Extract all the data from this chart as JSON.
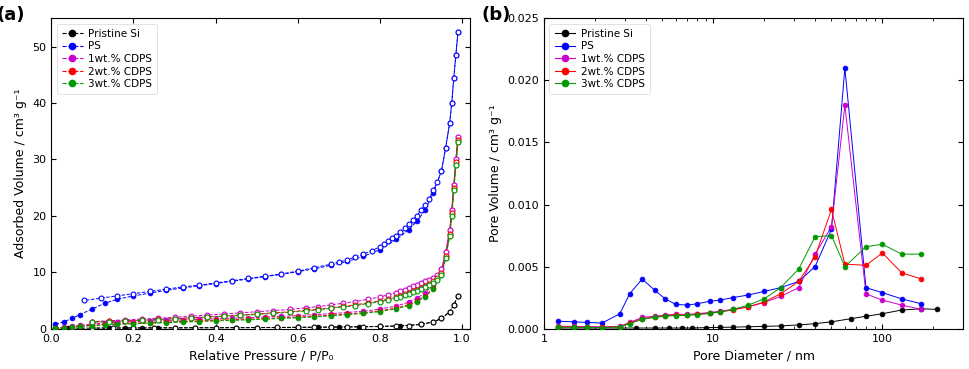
{
  "panel_a": {
    "xlabel": "Relative Pressure / P/P₀",
    "ylabel": "Adsorbed Volume / cm³ g⁻¹",
    "ylim": [
      0,
      55
    ],
    "yticks": [
      0,
      10,
      20,
      30,
      40,
      50
    ],
    "xlim": [
      0.0,
      1.02
    ],
    "xticks": [
      0.0,
      0.2,
      0.4,
      0.6,
      0.8,
      1.0
    ],
    "series": {
      "Pristine Si": {
        "color": "#000000",
        "adsorption_x": [
          0.01,
          0.04,
          0.07,
          0.1,
          0.14,
          0.18,
          0.22,
          0.26,
          0.3,
          0.35,
          0.4,
          0.45,
          0.5,
          0.55,
          0.6,
          0.65,
          0.7,
          0.75,
          0.8,
          0.85,
          0.9,
          0.93,
          0.95,
          0.97,
          0.98,
          0.99
        ],
        "adsorption_y": [
          0.05,
          0.07,
          0.08,
          0.09,
          0.1,
          0.11,
          0.12,
          0.13,
          0.14,
          0.15,
          0.16,
          0.17,
          0.18,
          0.2,
          0.22,
          0.24,
          0.27,
          0.31,
          0.38,
          0.52,
          0.75,
          1.2,
          1.8,
          3.0,
          4.2,
          5.8
        ],
        "desorption_x": [
          0.99,
          0.98,
          0.97,
          0.95,
          0.93,
          0.9,
          0.87,
          0.84,
          0.8,
          0.76,
          0.72,
          0.68,
          0.64,
          0.6,
          0.55,
          0.5,
          0.45,
          0.4,
          0.35,
          0.3,
          0.25,
          0.2,
          0.15,
          0.1
        ],
        "desorption_y": [
          5.8,
          4.2,
          3.0,
          1.8,
          1.2,
          0.75,
          0.55,
          0.45,
          0.4,
          0.35,
          0.32,
          0.29,
          0.26,
          0.24,
          0.22,
          0.2,
          0.18,
          0.17,
          0.16,
          0.15,
          0.14,
          0.13,
          0.12,
          0.1
        ]
      },
      "PS": {
        "color": "#0000FF",
        "adsorption_x": [
          0.01,
          0.03,
          0.05,
          0.07,
          0.1,
          0.13,
          0.16,
          0.2,
          0.24,
          0.28,
          0.32,
          0.36,
          0.4,
          0.44,
          0.48,
          0.52,
          0.56,
          0.6,
          0.64,
          0.68,
          0.72,
          0.76,
          0.8,
          0.84,
          0.87,
          0.89,
          0.91,
          0.93,
          0.95,
          0.96,
          0.97,
          0.975,
          0.98,
          0.985,
          0.99
        ],
        "adsorption_y": [
          0.8,
          1.2,
          1.8,
          2.5,
          3.5,
          4.5,
          5.2,
          5.8,
          6.3,
          6.8,
          7.2,
          7.6,
          8.0,
          8.4,
          8.8,
          9.2,
          9.6,
          10.1,
          10.6,
          11.2,
          11.9,
          12.8,
          14.0,
          15.8,
          17.5,
          19.0,
          21.0,
          24.0,
          28.0,
          32.0,
          36.5,
          40.0,
          44.5,
          48.5,
          52.5
        ],
        "desorption_x": [
          0.99,
          0.985,
          0.98,
          0.975,
          0.97,
          0.96,
          0.95,
          0.94,
          0.93,
          0.92,
          0.91,
          0.9,
          0.89,
          0.88,
          0.87,
          0.86,
          0.85,
          0.84,
          0.83,
          0.82,
          0.81,
          0.8,
          0.78,
          0.76,
          0.74,
          0.72,
          0.7,
          0.68,
          0.64,
          0.6,
          0.56,
          0.52,
          0.48,
          0.44,
          0.4,
          0.36,
          0.32,
          0.28,
          0.24,
          0.2,
          0.16,
          0.12,
          0.08
        ],
        "desorption_y": [
          52.5,
          48.5,
          44.5,
          40.0,
          36.5,
          32.0,
          28.0,
          26.0,
          24.5,
          23.0,
          22.0,
          21.0,
          20.0,
          19.2,
          18.5,
          17.8,
          17.2,
          16.5,
          16.0,
          15.5,
          15.0,
          14.5,
          13.8,
          13.2,
          12.7,
          12.2,
          11.8,
          11.4,
          10.8,
          10.2,
          9.7,
          9.3,
          8.9,
          8.5,
          8.1,
          7.7,
          7.4,
          7.0,
          6.6,
          6.2,
          5.8,
          5.4,
          5.0
        ]
      },
      "1wt.% CDPS": {
        "color": "#CC00CC",
        "adsorption_x": [
          0.01,
          0.03,
          0.05,
          0.07,
          0.1,
          0.13,
          0.16,
          0.2,
          0.24,
          0.28,
          0.32,
          0.36,
          0.4,
          0.44,
          0.48,
          0.52,
          0.56,
          0.6,
          0.64,
          0.68,
          0.72,
          0.76,
          0.8,
          0.84,
          0.87,
          0.89,
          0.91,
          0.93,
          0.95,
          0.96,
          0.97,
          0.975,
          0.98,
          0.985,
          0.99
        ],
        "adsorption_y": [
          0.15,
          0.25,
          0.4,
          0.6,
          0.8,
          1.0,
          1.15,
          1.25,
          1.35,
          1.45,
          1.55,
          1.65,
          1.75,
          1.85,
          1.95,
          2.05,
          2.18,
          2.32,
          2.48,
          2.65,
          2.85,
          3.1,
          3.45,
          4.0,
          4.7,
          5.4,
          6.3,
          7.8,
          10.5,
          13.5,
          17.5,
          21.0,
          25.5,
          30.0,
          34.0
        ],
        "desorption_x": [
          0.99,
          0.985,
          0.98,
          0.975,
          0.97,
          0.96,
          0.95,
          0.94,
          0.93,
          0.92,
          0.91,
          0.9,
          0.89,
          0.88,
          0.87,
          0.86,
          0.85,
          0.84,
          0.82,
          0.8,
          0.77,
          0.74,
          0.71,
          0.68,
          0.65,
          0.62,
          0.58,
          0.54,
          0.5,
          0.46,
          0.42,
          0.38,
          0.34,
          0.3,
          0.26,
          0.22,
          0.18,
          0.14,
          0.1
        ],
        "desorption_y": [
          34.0,
          30.0,
          25.5,
          21.0,
          17.5,
          13.5,
          10.5,
          9.5,
          9.0,
          8.7,
          8.4,
          8.1,
          7.8,
          7.5,
          7.2,
          6.9,
          6.6,
          6.4,
          6.0,
          5.6,
          5.2,
          4.8,
          4.5,
          4.2,
          3.9,
          3.7,
          3.4,
          3.2,
          3.0,
          2.8,
          2.6,
          2.4,
          2.2,
          2.0,
          1.85,
          1.7,
          1.55,
          1.4,
          1.25
        ]
      },
      "2wt.% CDPS": {
        "color": "#FF0000",
        "adsorption_x": [
          0.01,
          0.03,
          0.05,
          0.07,
          0.1,
          0.13,
          0.16,
          0.2,
          0.24,
          0.28,
          0.32,
          0.36,
          0.4,
          0.44,
          0.48,
          0.52,
          0.56,
          0.6,
          0.64,
          0.68,
          0.72,
          0.76,
          0.8,
          0.84,
          0.87,
          0.89,
          0.91,
          0.93,
          0.95,
          0.96,
          0.97,
          0.975,
          0.98,
          0.985,
          0.99
        ],
        "adsorption_y": [
          0.1,
          0.18,
          0.3,
          0.45,
          0.6,
          0.75,
          0.88,
          0.98,
          1.08,
          1.18,
          1.28,
          1.38,
          1.48,
          1.58,
          1.68,
          1.8,
          1.92,
          2.05,
          2.2,
          2.38,
          2.58,
          2.82,
          3.15,
          3.65,
          4.25,
          4.9,
          5.8,
          7.2,
          9.8,
          12.8,
          16.8,
          20.5,
          25.0,
          29.5,
          33.5
        ],
        "desorption_x": [
          0.99,
          0.985,
          0.98,
          0.975,
          0.97,
          0.96,
          0.95,
          0.94,
          0.93,
          0.92,
          0.91,
          0.9,
          0.89,
          0.88,
          0.87,
          0.86,
          0.85,
          0.84,
          0.82,
          0.8,
          0.77,
          0.74,
          0.71,
          0.68,
          0.65,
          0.62,
          0.58,
          0.54,
          0.5,
          0.46,
          0.42,
          0.38,
          0.34,
          0.3,
          0.26,
          0.22,
          0.18,
          0.14,
          0.1
        ],
        "desorption_y": [
          33.5,
          29.5,
          25.0,
          20.5,
          16.8,
          12.8,
          9.8,
          8.9,
          8.4,
          7.95,
          7.55,
          7.2,
          6.9,
          6.6,
          6.35,
          6.1,
          5.85,
          5.62,
          5.25,
          4.9,
          4.55,
          4.22,
          3.95,
          3.7,
          3.45,
          3.25,
          3.0,
          2.8,
          2.6,
          2.42,
          2.25,
          2.08,
          1.92,
          1.78,
          1.65,
          1.52,
          1.4,
          1.28,
          1.18
        ]
      },
      "3wt.% CDPS": {
        "color": "#009900",
        "adsorption_x": [
          0.01,
          0.03,
          0.05,
          0.07,
          0.1,
          0.13,
          0.16,
          0.2,
          0.24,
          0.28,
          0.32,
          0.36,
          0.4,
          0.44,
          0.48,
          0.52,
          0.56,
          0.6,
          0.64,
          0.68,
          0.72,
          0.76,
          0.8,
          0.84,
          0.87,
          0.89,
          0.91,
          0.93,
          0.95,
          0.96,
          0.97,
          0.975,
          0.98,
          0.985,
          0.99
        ],
        "adsorption_y": [
          0.08,
          0.15,
          0.25,
          0.38,
          0.52,
          0.65,
          0.76,
          0.86,
          0.96,
          1.06,
          1.16,
          1.26,
          1.36,
          1.46,
          1.56,
          1.68,
          1.8,
          1.93,
          2.08,
          2.26,
          2.46,
          2.7,
          3.02,
          3.52,
          4.1,
          4.75,
          5.65,
          7.0,
          9.5,
          12.5,
          16.5,
          20.0,
          24.5,
          29.0,
          33.0
        ],
        "desorption_x": [
          0.99,
          0.985,
          0.98,
          0.975,
          0.97,
          0.96,
          0.95,
          0.94,
          0.93,
          0.92,
          0.91,
          0.9,
          0.89,
          0.88,
          0.87,
          0.86,
          0.85,
          0.84,
          0.82,
          0.8,
          0.77,
          0.74,
          0.71,
          0.68,
          0.65,
          0.62,
          0.58,
          0.54,
          0.5,
          0.46,
          0.42,
          0.38,
          0.34,
          0.3,
          0.26,
          0.22,
          0.18,
          0.14,
          0.1
        ],
        "desorption_y": [
          33.0,
          29.0,
          24.5,
          20.0,
          16.5,
          12.5,
          9.5,
          8.6,
          8.1,
          7.7,
          7.35,
          7.0,
          6.7,
          6.42,
          6.17,
          5.92,
          5.68,
          5.46,
          5.1,
          4.76,
          4.42,
          4.1,
          3.82,
          3.58,
          3.35,
          3.14,
          2.9,
          2.7,
          2.52,
          2.34,
          2.18,
          2.02,
          1.87,
          1.73,
          1.6,
          1.48,
          1.36,
          1.25,
          1.15
        ]
      }
    }
  },
  "panel_b": {
    "xlabel": "Pore Diameter / nm",
    "ylabel": "Pore Volume / cm³ g⁻¹",
    "ylim": [
      0.0,
      0.025
    ],
    "yticks": [
      0.0,
      0.005,
      0.01,
      0.015,
      0.02,
      0.025
    ],
    "xlim": [
      1,
      300
    ],
    "series": {
      "Pristine Si": {
        "color": "#000000",
        "x": [
          1.2,
          1.5,
          1.8,
          2.2,
          2.8,
          3.5,
          4.5,
          5.5,
          6.5,
          7.5,
          9.0,
          11.0,
          13.0,
          16.0,
          20.0,
          25.0,
          32.0,
          40.0,
          50.0,
          65.0,
          80.0,
          100.0,
          130.0,
          170.0,
          210.0
        ],
        "y": [
          5e-05,
          5e-05,
          5e-05,
          5e-05,
          5e-05,
          5e-05,
          5e-05,
          5e-05,
          5e-05,
          5e-05,
          8e-05,
          0.0001,
          0.00012,
          0.00015,
          0.00018,
          0.00022,
          0.0003,
          0.0004,
          0.00055,
          0.0008,
          0.001,
          0.0012,
          0.0015,
          0.0016,
          0.00155
        ]
      },
      "PS": {
        "color": "#0000FF",
        "x": [
          1.2,
          1.5,
          1.8,
          2.2,
          2.8,
          3.2,
          3.8,
          4.5,
          5.2,
          6.0,
          7.0,
          8.0,
          9.5,
          11.0,
          13.0,
          16.0,
          20.0,
          25.0,
          32.0,
          40.0,
          50.0,
          60.0,
          80.0,
          100.0,
          130.0,
          170.0
        ],
        "y": [
          0.0006,
          0.00055,
          0.0005,
          0.00045,
          0.0012,
          0.0028,
          0.004,
          0.0031,
          0.0024,
          0.00195,
          0.0019,
          0.002,
          0.0022,
          0.0023,
          0.0025,
          0.0027,
          0.003,
          0.0033,
          0.0038,
          0.005,
          0.008,
          0.021,
          0.0033,
          0.0029,
          0.0024,
          0.002
        ]
      },
      "1wt.% CDPS": {
        "color": "#CC00CC",
        "x": [
          1.2,
          1.5,
          1.8,
          2.2,
          2.8,
          3.2,
          3.8,
          4.5,
          5.2,
          6.0,
          7.0,
          8.0,
          9.5,
          11.0,
          13.0,
          16.0,
          20.0,
          25.0,
          32.0,
          40.0,
          50.0,
          60.0,
          80.0,
          100.0,
          130.0,
          170.0
        ],
        "y": [
          0.0002,
          0.00018,
          0.00016,
          0.00015,
          0.00018,
          0.0005,
          0.0009,
          0.001,
          0.0011,
          0.00115,
          0.00115,
          0.0012,
          0.0013,
          0.0014,
          0.00155,
          0.00175,
          0.0021,
          0.0026,
          0.0033,
          0.006,
          0.0082,
          0.018,
          0.0028,
          0.0023,
          0.0019,
          0.00155
        ]
      },
      "2wt.% CDPS": {
        "color": "#FF0000",
        "x": [
          1.2,
          1.5,
          1.8,
          2.2,
          2.8,
          3.2,
          3.8,
          4.5,
          5.2,
          6.0,
          7.0,
          8.0,
          9.5,
          11.0,
          13.0,
          16.0,
          20.0,
          25.0,
          32.0,
          40.0,
          50.0,
          60.0,
          80.0,
          100.0,
          130.0,
          170.0
        ],
        "y": [
          0.00015,
          0.00013,
          0.00012,
          0.00011,
          0.00015,
          0.00045,
          0.0008,
          0.00095,
          0.00105,
          0.0011,
          0.0011,
          0.00115,
          0.00125,
          0.00135,
          0.0015,
          0.00175,
          0.00215,
          0.0028,
          0.0038,
          0.0058,
          0.0096,
          0.0052,
          0.0051,
          0.0061,
          0.0045,
          0.004
        ]
      },
      "3wt.% CDPS": {
        "color": "#009900",
        "x": [
          1.2,
          1.5,
          1.8,
          2.2,
          2.8,
          3.2,
          3.8,
          4.5,
          5.2,
          6.0,
          7.0,
          8.0,
          9.5,
          11.0,
          13.0,
          16.0,
          20.0,
          25.0,
          32.0,
          40.0,
          50.0,
          60.0,
          80.0,
          100.0,
          130.0,
          170.0
        ],
        "y": [
          0.00012,
          0.0001,
          0.0001,
          9e-05,
          0.00012,
          0.0004,
          0.00075,
          0.0009,
          0.001,
          0.00105,
          0.00108,
          0.00112,
          0.00122,
          0.00135,
          0.00155,
          0.00188,
          0.0024,
          0.0033,
          0.0048,
          0.0074,
          0.0075,
          0.005,
          0.0066,
          0.0068,
          0.006,
          0.006
        ]
      }
    }
  },
  "legend_order": [
    "Pristine Si",
    "PS",
    "1wt.% CDPS",
    "2wt.% CDPS",
    "3wt.% CDPS"
  ]
}
